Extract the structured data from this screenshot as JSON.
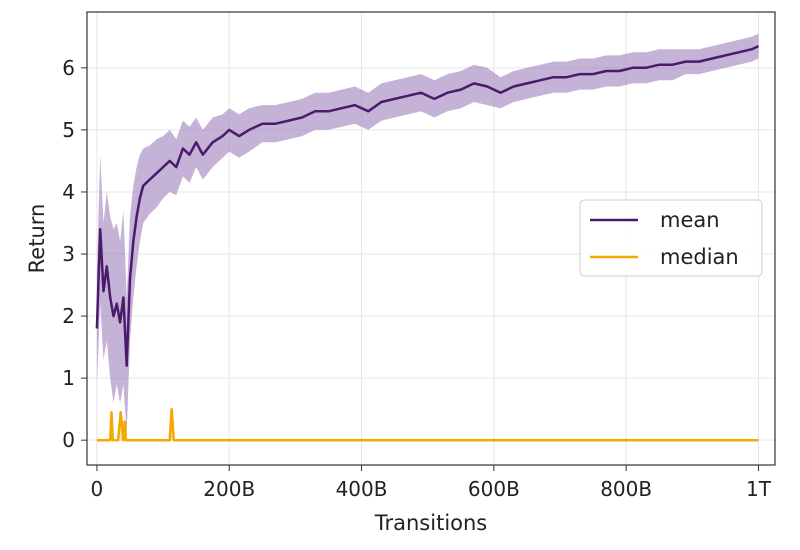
{
  "chart_data": {
    "type": "line",
    "title": "",
    "xlabel": "Transitions",
    "ylabel": "Return",
    "xlim": [
      -15,
      1025
    ],
    "ylim": [
      -0.4,
      6.9
    ],
    "x_unit_note": "x values in billions of transitions",
    "xticks": [
      0,
      200,
      400,
      600,
      800,
      1000
    ],
    "xtick_labels": [
      "0",
      "200B",
      "400B",
      "600B",
      "800B",
      "1T"
    ],
    "yticks": [
      0,
      1,
      2,
      3,
      4,
      5,
      6
    ],
    "ytick_labels": [
      "0",
      "1",
      "2",
      "3",
      "4",
      "5",
      "6"
    ],
    "grid": true,
    "legend_position": "center-right",
    "series": [
      {
        "name": "mean",
        "color": "#4b1a6b",
        "band_color": "#a689c2",
        "x": [
          0,
          5,
          10,
          15,
          20,
          25,
          30,
          35,
          40,
          45,
          50,
          55,
          60,
          65,
          70,
          80,
          90,
          100,
          110,
          120,
          130,
          140,
          150,
          160,
          175,
          190,
          200,
          215,
          230,
          250,
          270,
          290,
          310,
          330,
          350,
          370,
          390,
          410,
          430,
          450,
          470,
          490,
          510,
          530,
          550,
          570,
          590,
          610,
          630,
          650,
          670,
          690,
          710,
          730,
          750,
          770,
          790,
          810,
          830,
          850,
          870,
          890,
          910,
          930,
          950,
          970,
          990,
          1000
        ],
        "y": [
          1.8,
          3.4,
          2.4,
          2.8,
          2.3,
          2.0,
          2.2,
          1.9,
          2.3,
          1.2,
          2.6,
          3.2,
          3.6,
          3.9,
          4.1,
          4.2,
          4.3,
          4.4,
          4.5,
          4.4,
          4.7,
          4.6,
          4.8,
          4.6,
          4.8,
          4.9,
          5.0,
          4.9,
          5.0,
          5.1,
          5.1,
          5.15,
          5.2,
          5.3,
          5.3,
          5.35,
          5.4,
          5.3,
          5.45,
          5.5,
          5.55,
          5.6,
          5.5,
          5.6,
          5.65,
          5.75,
          5.7,
          5.6,
          5.7,
          5.75,
          5.8,
          5.85,
          5.85,
          5.9,
          5.9,
          5.95,
          5.95,
          6.0,
          6.0,
          6.05,
          6.05,
          6.1,
          6.1,
          6.15,
          6.2,
          6.25,
          6.3,
          6.35
        ],
        "band": [
          0.9,
          1.2,
          1.1,
          1.2,
          1.3,
          1.4,
          1.3,
          1.3,
          1.4,
          1.1,
          1.0,
          0.9,
          0.8,
          0.7,
          0.6,
          0.55,
          0.55,
          0.5,
          0.5,
          0.45,
          0.45,
          0.45,
          0.4,
          0.4,
          0.4,
          0.35,
          0.35,
          0.35,
          0.35,
          0.3,
          0.3,
          0.3,
          0.3,
          0.3,
          0.3,
          0.3,
          0.3,
          0.3,
          0.3,
          0.3,
          0.3,
          0.3,
          0.3,
          0.3,
          0.3,
          0.3,
          0.3,
          0.25,
          0.25,
          0.25,
          0.25,
          0.25,
          0.25,
          0.25,
          0.25,
          0.25,
          0.25,
          0.25,
          0.25,
          0.25,
          0.25,
          0.2,
          0.2,
          0.2,
          0.2,
          0.2,
          0.2,
          0.2
        ]
      },
      {
        "name": "median",
        "color": "#f5a800",
        "band_color": "#f7c766",
        "x": [
          0,
          20,
          22,
          24,
          28,
          32,
          36,
          40,
          42,
          44,
          110,
          113,
          116,
          120,
          1000
        ],
        "y": [
          0,
          0,
          0.45,
          0,
          0,
          0,
          0.45,
          0,
          0.3,
          0,
          0,
          0.5,
          0,
          0,
          0
        ]
      }
    ]
  }
}
